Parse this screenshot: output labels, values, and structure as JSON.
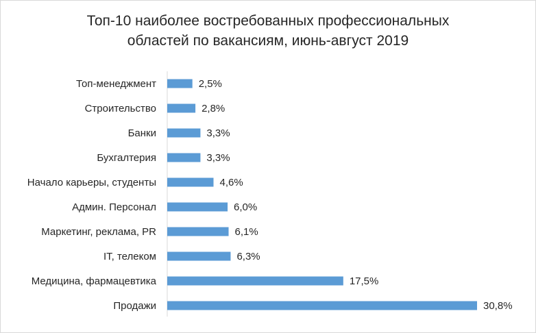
{
  "chart_data": {
    "type": "bar",
    "orientation": "horizontal",
    "title_line1": "Топ-10 наиболее востребованных профессиональных",
    "title_line2": "областей по вакансиям, июнь-август 2019",
    "xlabel": "",
    "ylabel": "",
    "categories": [
      "Топ-менеджмент",
      "Строительство",
      "Банки",
      "Бухгалтерия",
      "Начало карьеры, студенты",
      "Админ. Персонал",
      "Маркетинг, реклама, PR",
      "IT, телеком",
      "Медицина, фармацевтика",
      "Продажи"
    ],
    "values": [
      2.5,
      2.8,
      3.3,
      3.3,
      4.6,
      6.0,
      6.1,
      6.3,
      17.5,
      30.8
    ],
    "value_labels": [
      "2,5%",
      "2,8%",
      "3,3%",
      "3,3%",
      "4,6%",
      "6,0%",
      "6,1%",
      "6,3%",
      "17,5%",
      "30,8%"
    ],
    "xlim": [
      0,
      30.8
    ],
    "grid": false,
    "legend": "none",
    "bar_color": "#5b9bd5"
  }
}
